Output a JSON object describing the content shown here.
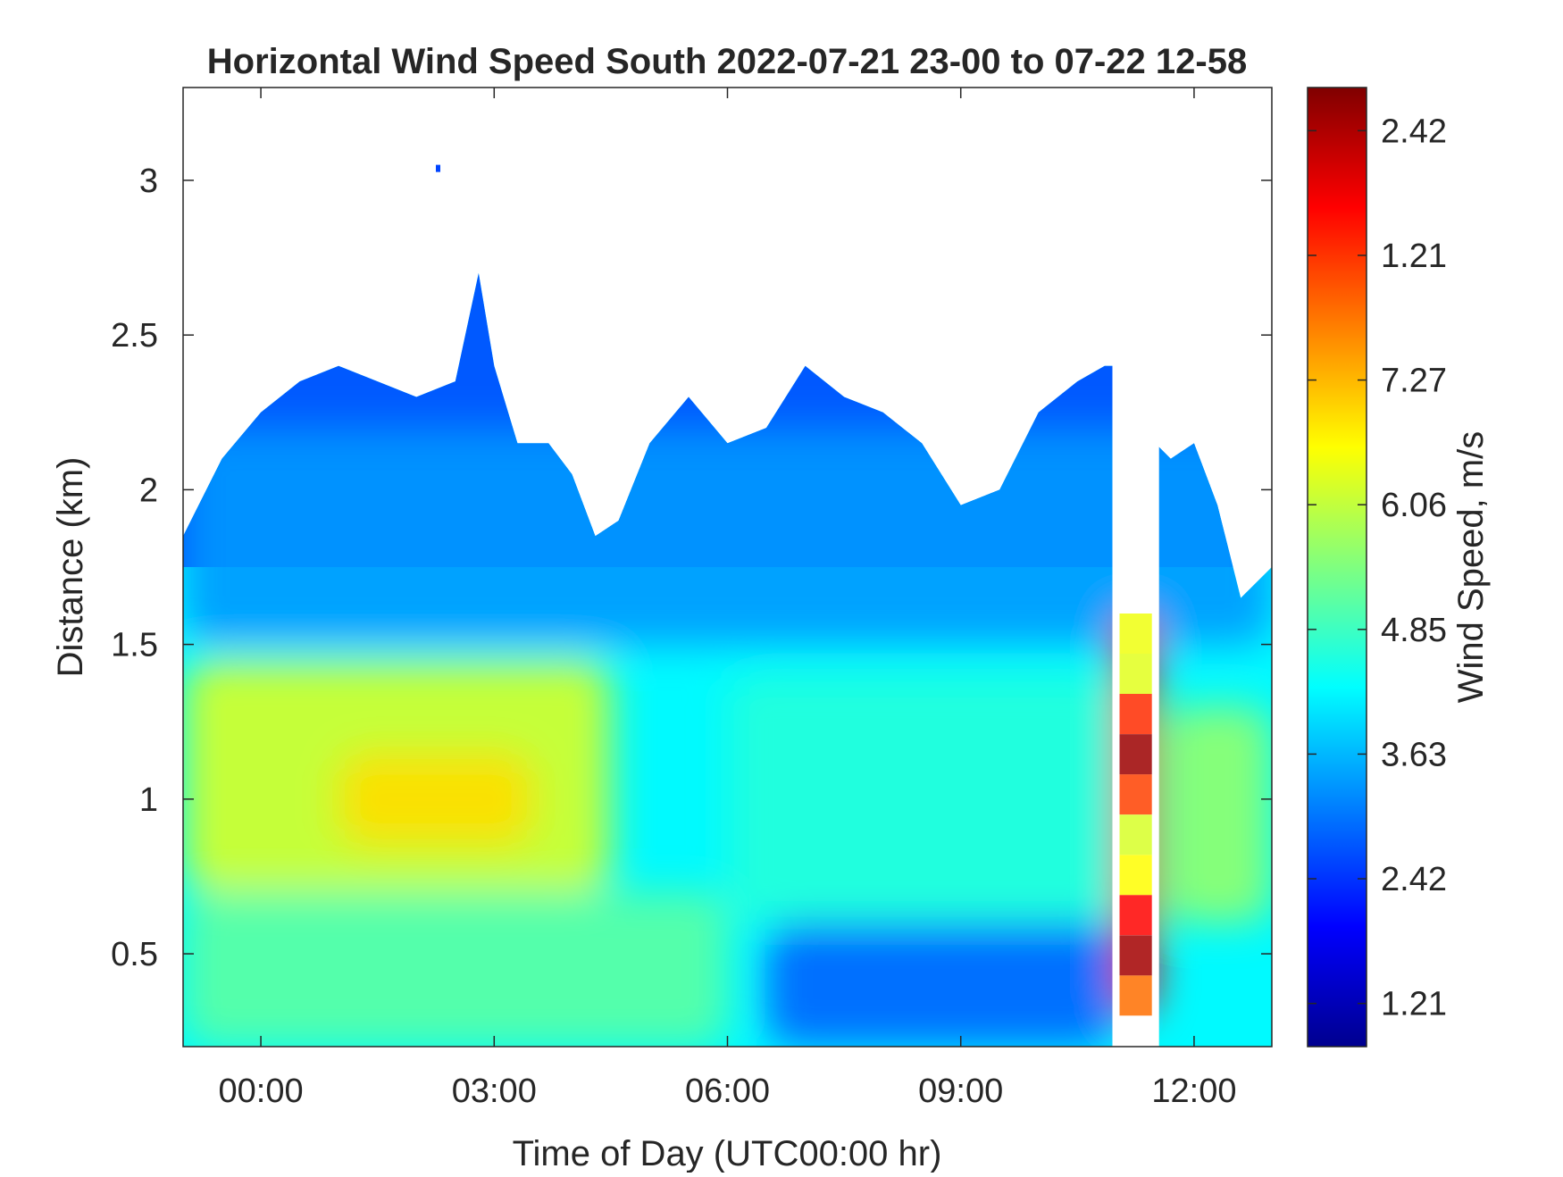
{
  "chart_data": {
    "type": "heatmap",
    "title": "Horizontal Wind Speed South 2022-07-21 23-00 to 07-22 12-58",
    "xlabel": "Time of Day (UTC00:00 hr)",
    "ylabel": "Distance (km)",
    "colorbar_label": "Wind Speed, m/s",
    "colormap": "jet",
    "xlim_hours": [
      -1,
      13
    ],
    "ylim_km": [
      0.2,
      3.3
    ],
    "x_ticks": [
      {
        "hours": 0,
        "label": "00:00"
      },
      {
        "hours": 3,
        "label": "03:00"
      },
      {
        "hours": 6,
        "label": "06:00"
      },
      {
        "hours": 9,
        "label": "09:00"
      },
      {
        "hours": 12,
        "label": "12:00"
      }
    ],
    "y_ticks": [
      {
        "km": 0.5,
        "label": "0.5"
      },
      {
        "km": 1.0,
        "label": "1"
      },
      {
        "km": 1.5,
        "label": "1.5"
      },
      {
        "km": 2.0,
        "label": "2"
      },
      {
        "km": 2.5,
        "label": "2.5"
      },
      {
        "km": 3.0,
        "label": "3"
      }
    ],
    "colorbar_ticks": [
      {
        "fraction": 0.045,
        "label": "1.21"
      },
      {
        "fraction": 0.175,
        "label": "2.42"
      },
      {
        "fraction": 0.305,
        "label": "3.63"
      },
      {
        "fraction": 0.435,
        "label": "4.85"
      },
      {
        "fraction": 0.565,
        "label": "6.06"
      },
      {
        "fraction": 0.695,
        "label": "7.27"
      },
      {
        "fraction": 0.825,
        "label": "1.21"
      },
      {
        "fraction": 0.955,
        "label": "2.42"
      }
    ],
    "data_top_km": {
      "hours": [
        -1.0,
        -0.5,
        0.0,
        0.5,
        1.0,
        1.5,
        2.0,
        2.5,
        2.8,
        3.0,
        3.3,
        3.7,
        4.0,
        4.3,
        4.6,
        5.0,
        5.5,
        6.0,
        6.5,
        7.0,
        7.5,
        8.0,
        8.5,
        9.0,
        9.5,
        10.0,
        10.5,
        10.85,
        10.95,
        11.5,
        11.7,
        12.0,
        12.3,
        12.6,
        13.0
      ],
      "top_km": [
        1.85,
        2.1,
        2.25,
        2.35,
        2.4,
        2.35,
        2.3,
        2.35,
        2.7,
        2.4,
        2.15,
        2.15,
        2.05,
        1.85,
        1.9,
        2.15,
        2.3,
        2.15,
        2.2,
        2.4,
        2.3,
        2.25,
        2.15,
        1.95,
        2.0,
        2.25,
        2.35,
        2.4,
        2.4,
        2.15,
        2.1,
        2.15,
        1.95,
        1.65,
        1.75
      ]
    },
    "gap_hours": [
      10.95,
      11.55
    ],
    "isolated_speckle": {
      "hours": 2.25,
      "km": 3.05
    },
    "wind_speed_regions": [
      {
        "hours": [
          -1.0,
          4.5
        ],
        "km": [
          0.7,
          1.45
        ],
        "speed_m_s": 5.3
      },
      {
        "hours": [
          1.0,
          3.5
        ],
        "km": [
          0.85,
          1.15
        ],
        "speed_m_s": 5.8
      },
      {
        "hours": [
          -1.0,
          6.0
        ],
        "km": [
          0.2,
          0.7
        ],
        "speed_m_s": 4.4
      },
      {
        "hours": [
          6.0,
          11.0
        ],
        "km": [
          0.6,
          1.4
        ],
        "speed_m_s": 4.0
      },
      {
        "hours": [
          6.5,
          11.0
        ],
        "km": [
          0.2,
          0.6
        ],
        "speed_m_s": 2.6
      },
      {
        "hours": [
          -1.0,
          13.0
        ],
        "km": [
          1.5,
          2.2
        ],
        "speed_m_s": 3.0
      },
      {
        "hours": [
          11.0,
          11.5
        ],
        "km": [
          0.3,
          1.6
        ],
        "speed_m_s": 7.5
      },
      {
        "hours": [
          11.6,
          13.0
        ],
        "km": [
          0.6,
          1.3
        ],
        "speed_m_s": 4.8
      }
    ]
  }
}
